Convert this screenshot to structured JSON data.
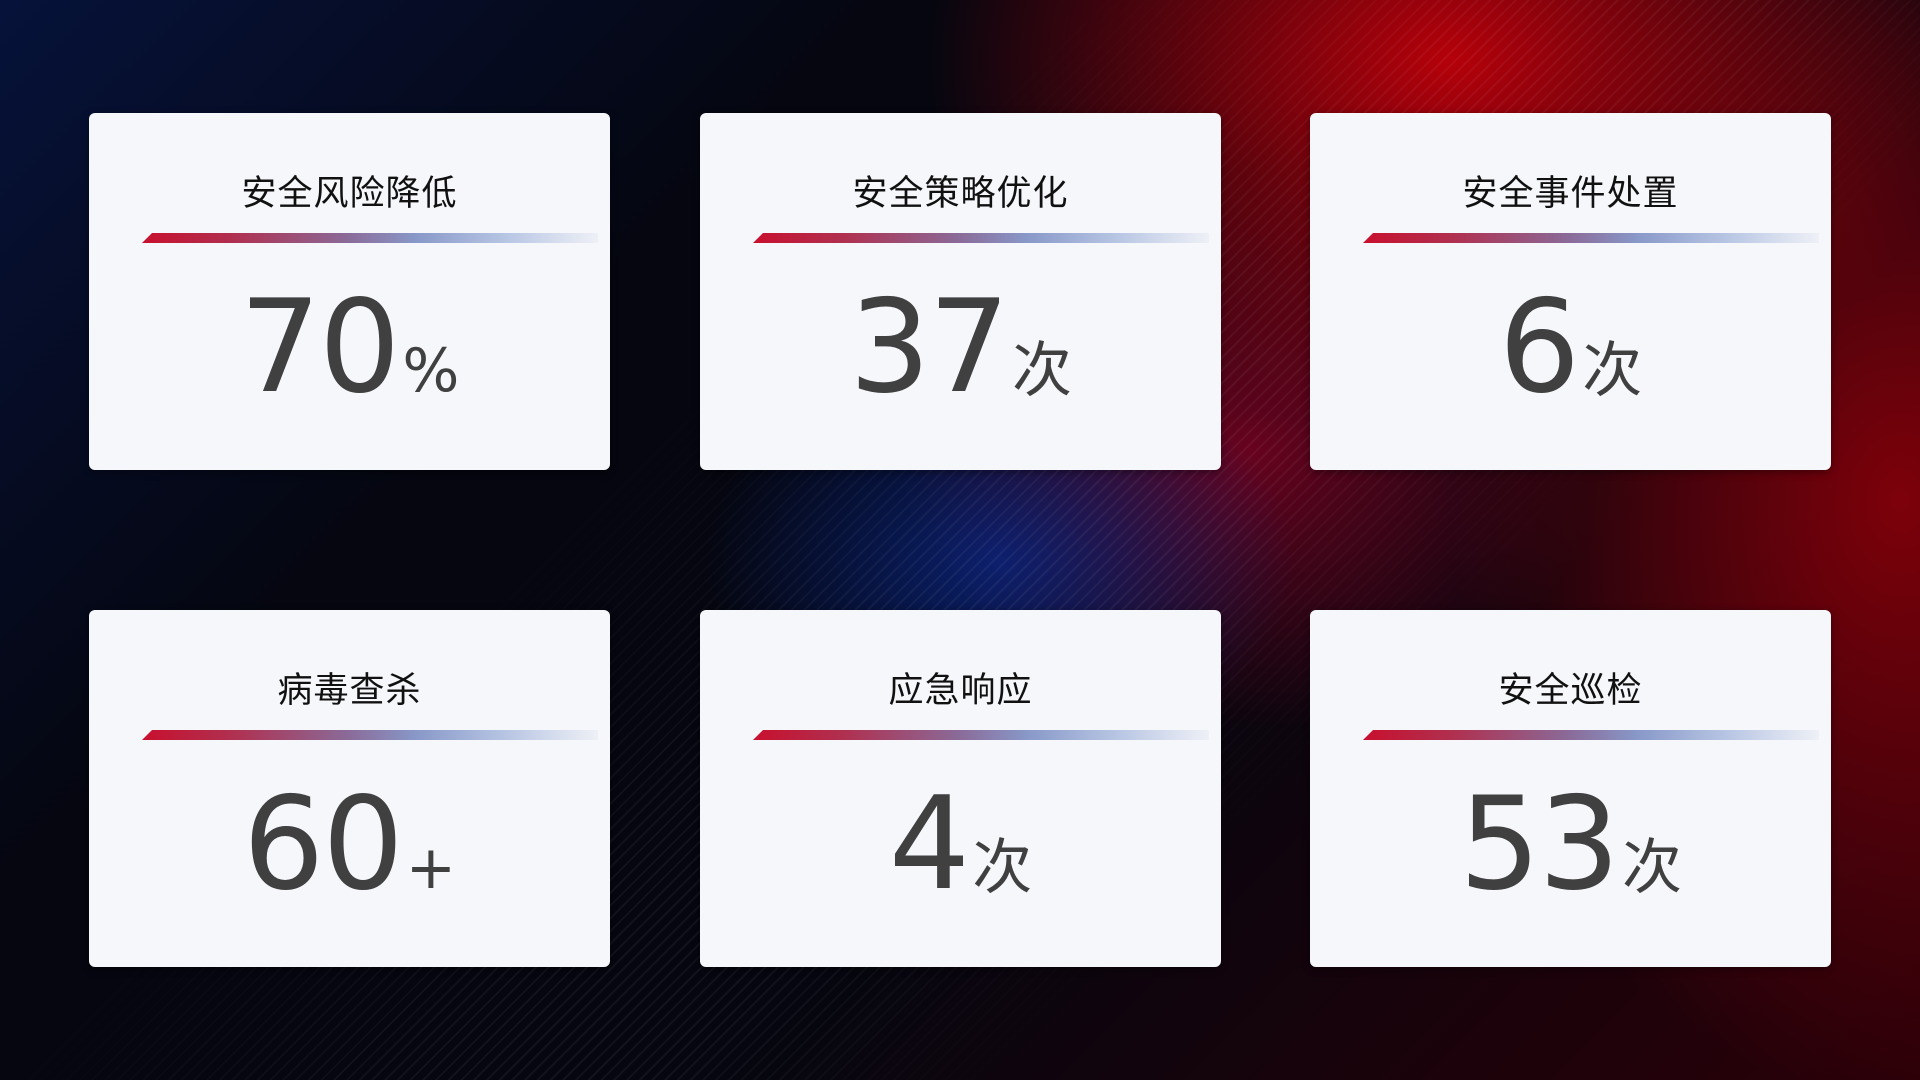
{
  "colors": {
    "accent_red": "#c8102e",
    "accent_blue": "#8898c8",
    "card_bg": "#f6f7fb",
    "value_text": "#404040"
  },
  "cards": [
    {
      "title": "安全风险降低",
      "value": "70",
      "unit": "%"
    },
    {
      "title": "安全策略优化",
      "value": "37",
      "unit": "次"
    },
    {
      "title": "安全事件处置",
      "value": "6",
      "unit": "次"
    },
    {
      "title": "病毒查杀",
      "value": "60",
      "unit": "+"
    },
    {
      "title": "应急响应",
      "value": "4",
      "unit": "次"
    },
    {
      "title": "安全巡检",
      "value": "53",
      "unit": "次"
    }
  ]
}
